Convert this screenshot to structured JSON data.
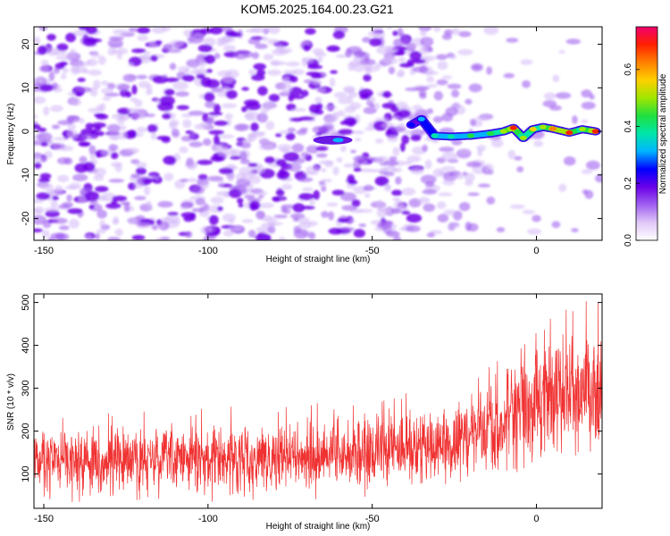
{
  "figure": {
    "title": "KOM5.2025.164.00.23.G21"
  },
  "chart_data": [
    {
      "type": "heatmap",
      "xlabel": "Height of straight line (km)",
      "ylabel": "Frequency (Hz)",
      "xlim": [
        -153,
        20
      ],
      "ylim": [
        -25,
        24
      ],
      "xticks": [
        -150,
        -100,
        -50,
        0
      ],
      "yticks": [
        -20,
        -10,
        0,
        10,
        20
      ],
      "colorbar": {
        "label": "Normalized spectral amplitude",
        "range": [
          0.0,
          0.75
        ],
        "ticks": [
          0.0,
          0.2,
          0.4,
          0.6
        ],
        "colors": [
          "#ffffff",
          "#e0c8f8",
          "#a060f0",
          "#6a00e8",
          "#0000ff",
          "#00b4ff",
          "#00e6aa",
          "#20e040",
          "#a0e600",
          "#ffd000",
          "#ff8000",
          "#ff2000",
          "#f0006e"
        ]
      },
      "background_noise": {
        "x_range": [
          -153,
          -35
        ],
        "color": "#7800e6"
      },
      "trace": [
        {
          "x": -38,
          "y": 1.5,
          "value": 0.25
        },
        {
          "x": -35,
          "y": 2.8,
          "value": 0.3
        },
        {
          "x": -31,
          "y": -1,
          "value": 0.38
        },
        {
          "x": -26,
          "y": -1.2,
          "value": 0.4
        },
        {
          "x": -20,
          "y": -1,
          "value": 0.42
        },
        {
          "x": -14,
          "y": -0.5,
          "value": 0.45
        },
        {
          "x": -10,
          "y": 0,
          "value": 0.5
        },
        {
          "x": -7,
          "y": 0.8,
          "value": 0.68
        },
        {
          "x": -4,
          "y": -1.5,
          "value": 0.5
        },
        {
          "x": -1,
          "y": 0.5,
          "value": 0.55
        },
        {
          "x": 2,
          "y": 1,
          "value": 0.5
        },
        {
          "x": 5,
          "y": 0.6,
          "value": 0.65
        },
        {
          "x": 10,
          "y": -0.3,
          "value": 0.66
        },
        {
          "x": 14,
          "y": 0.5,
          "value": 0.5
        },
        {
          "x": 18,
          "y": 0,
          "value": 0.7
        }
      ],
      "side_blob": {
        "x": -62,
        "y": -2,
        "value": 0.2
      }
    },
    {
      "type": "line",
      "xlabel": "Height of straight line (km)",
      "ylabel": "SNR (10 * v/v)",
      "xlim": [
        -153,
        20
      ],
      "ylim": [
        20,
        520
      ],
      "xticks": [
        -150,
        -100,
        -50,
        0
      ],
      "yticks": [
        100,
        200,
        300,
        400,
        500
      ],
      "color": "#f03232",
      "envelope": [
        {
          "x": -153,
          "low": 30,
          "high": 230
        },
        {
          "x": -120,
          "low": 30,
          "high": 230
        },
        {
          "x": -60,
          "low": 35,
          "high": 250
        },
        {
          "x": -35,
          "low": 45,
          "high": 280
        },
        {
          "x": -20,
          "low": 60,
          "high": 320
        },
        {
          "x": -5,
          "low": 80,
          "high": 390
        },
        {
          "x": 5,
          "low": 110,
          "high": 450
        },
        {
          "x": 20,
          "low": 90,
          "high": 500
        }
      ]
    }
  ]
}
